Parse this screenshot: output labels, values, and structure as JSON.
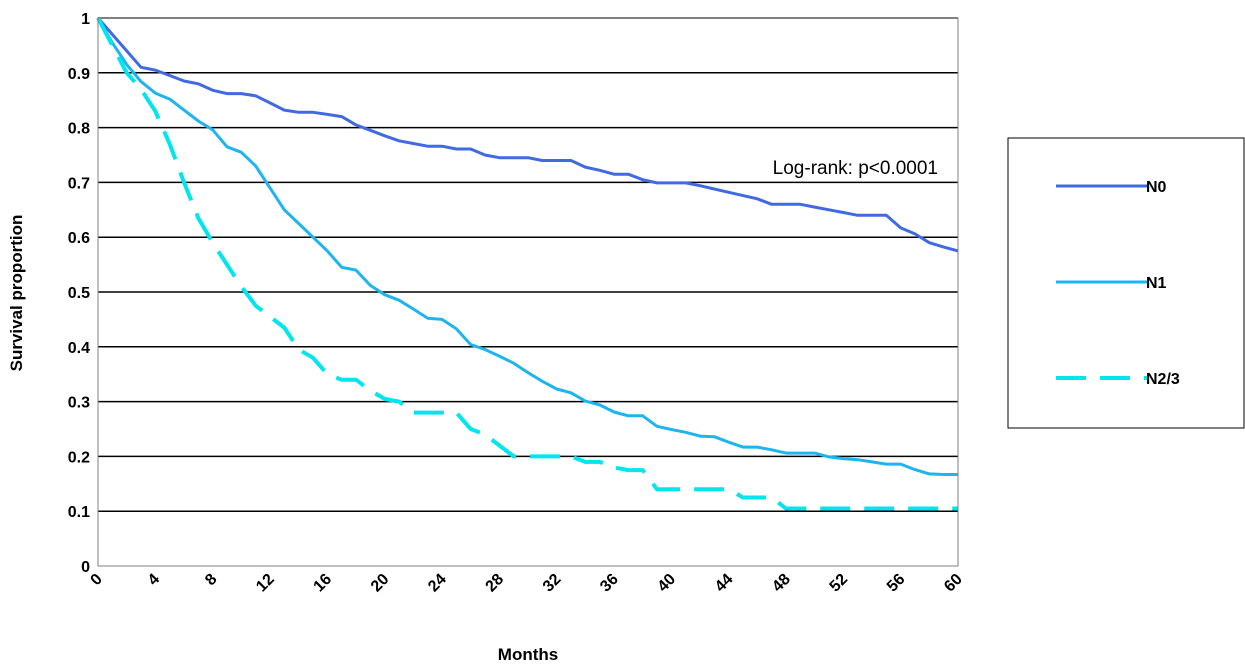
{
  "chart_data": {
    "type": "line",
    "title": "",
    "xlabel": "Months",
    "ylabel": "Survival proportion",
    "xlim": [
      0,
      60
    ],
    "ylim": [
      0,
      1
    ],
    "x_ticks": [
      "0",
      "4",
      "8",
      "12",
      "16",
      "20",
      "24",
      "28",
      "32",
      "36",
      "40",
      "44",
      "48",
      "52",
      "56",
      "60"
    ],
    "y_ticks": [
      "0",
      "0.1",
      "0.2",
      "0.3",
      "0.4",
      "0.5",
      "0.6",
      "0.7",
      "0.8",
      "0.9",
      "1"
    ],
    "grid": "horizontal",
    "legend_position": "right",
    "annotation": "Log-rank: p<0.0001",
    "series": [
      {
        "name": "N0",
        "color": "#4169e1",
        "dash": "solid",
        "x": [
          0,
          1,
          2,
          3,
          4,
          5,
          6,
          7,
          8,
          9,
          10,
          11,
          12,
          13,
          14,
          15,
          16,
          17,
          18,
          19,
          20,
          21,
          22,
          23,
          24,
          25,
          26,
          27,
          28,
          29,
          30,
          31,
          32,
          33,
          34,
          35,
          36,
          37,
          38,
          39,
          40,
          41,
          42,
          43,
          44,
          45,
          46,
          47,
          48,
          49,
          50,
          51,
          52,
          53,
          54,
          55,
          56,
          57,
          58,
          59,
          60
        ],
        "values": [
          1.0,
          0.97,
          0.94,
          0.91,
          0.905,
          0.895,
          0.885,
          0.88,
          0.868,
          0.862,
          0.862,
          0.858,
          0.845,
          0.832,
          0.828,
          0.828,
          0.824,
          0.82,
          0.805,
          0.795,
          0.785,
          0.776,
          0.771,
          0.766,
          0.766,
          0.761,
          0.761,
          0.75,
          0.745,
          0.745,
          0.745,
          0.74,
          0.74,
          0.74,
          0.728,
          0.722,
          0.715,
          0.715,
          0.705,
          0.699,
          0.699,
          0.699,
          0.694,
          0.688,
          0.682,
          0.676,
          0.67,
          0.66,
          0.66,
          0.66,
          0.655,
          0.65,
          0.645,
          0.64,
          0.64,
          0.64,
          0.617,
          0.606,
          0.59,
          0.582,
          0.575
        ]
      },
      {
        "name": "N1",
        "color": "#1eb4f0",
        "dash": "solid",
        "x": [
          0,
          1,
          2,
          3,
          4,
          5,
          6,
          7,
          8,
          9,
          10,
          11,
          12,
          13,
          14,
          15,
          16,
          17,
          18,
          19,
          20,
          21,
          22,
          23,
          24,
          25,
          26,
          27,
          28,
          29,
          30,
          31,
          32,
          33,
          34,
          35,
          36,
          37,
          38,
          39,
          40,
          41,
          42,
          43,
          44,
          45,
          46,
          47,
          48,
          49,
          50,
          51,
          52,
          53,
          54,
          55,
          56,
          57,
          58,
          59,
          60
        ],
        "values": [
          1.0,
          0.955,
          0.915,
          0.884,
          0.863,
          0.852,
          0.832,
          0.812,
          0.796,
          0.765,
          0.755,
          0.73,
          0.69,
          0.65,
          0.625,
          0.6,
          0.575,
          0.545,
          0.54,
          0.512,
          0.495,
          0.485,
          0.469,
          0.452,
          0.45,
          0.433,
          0.404,
          0.395,
          0.383,
          0.37,
          0.353,
          0.337,
          0.323,
          0.316,
          0.301,
          0.294,
          0.281,
          0.274,
          0.274,
          0.255,
          0.249,
          0.244,
          0.237,
          0.236,
          0.226,
          0.217,
          0.217,
          0.212,
          0.206,
          0.206,
          0.206,
          0.199,
          0.196,
          0.194,
          0.19,
          0.186,
          0.186,
          0.176,
          0.168,
          0.167,
          0.167
        ]
      },
      {
        "name": "N2/3",
        "color": "#00e5ee",
        "dash": "dashed",
        "x": [
          0,
          1,
          2,
          3,
          4,
          5,
          6,
          7,
          8,
          9,
          10,
          11,
          12,
          13,
          14,
          15,
          16,
          17,
          18,
          19,
          20,
          21,
          22,
          23,
          24,
          25,
          26,
          27,
          28,
          29,
          30,
          31,
          32,
          33,
          34,
          35,
          36,
          37,
          38,
          39,
          40,
          41,
          42,
          43,
          44,
          45,
          46,
          47,
          48,
          49,
          50,
          51,
          52,
          53,
          54,
          55,
          56,
          57,
          58,
          59,
          60
        ],
        "values": [
          1.0,
          0.95,
          0.9,
          0.87,
          0.83,
          0.77,
          0.7,
          0.635,
          0.59,
          0.55,
          0.51,
          0.475,
          0.455,
          0.435,
          0.395,
          0.38,
          0.35,
          0.34,
          0.34,
          0.32,
          0.305,
          0.3,
          0.28,
          0.28,
          0.28,
          0.28,
          0.25,
          0.24,
          0.22,
          0.2,
          0.2,
          0.2,
          0.2,
          0.2,
          0.19,
          0.19,
          0.18,
          0.175,
          0.175,
          0.14,
          0.14,
          0.14,
          0.14,
          0.14,
          0.14,
          0.125,
          0.125,
          0.125,
          0.105,
          0.105,
          0.105,
          0.105,
          0.105,
          0.105,
          0.105,
          0.105,
          0.105,
          0.105,
          0.105,
          0.105,
          0.105
        ]
      }
    ]
  }
}
